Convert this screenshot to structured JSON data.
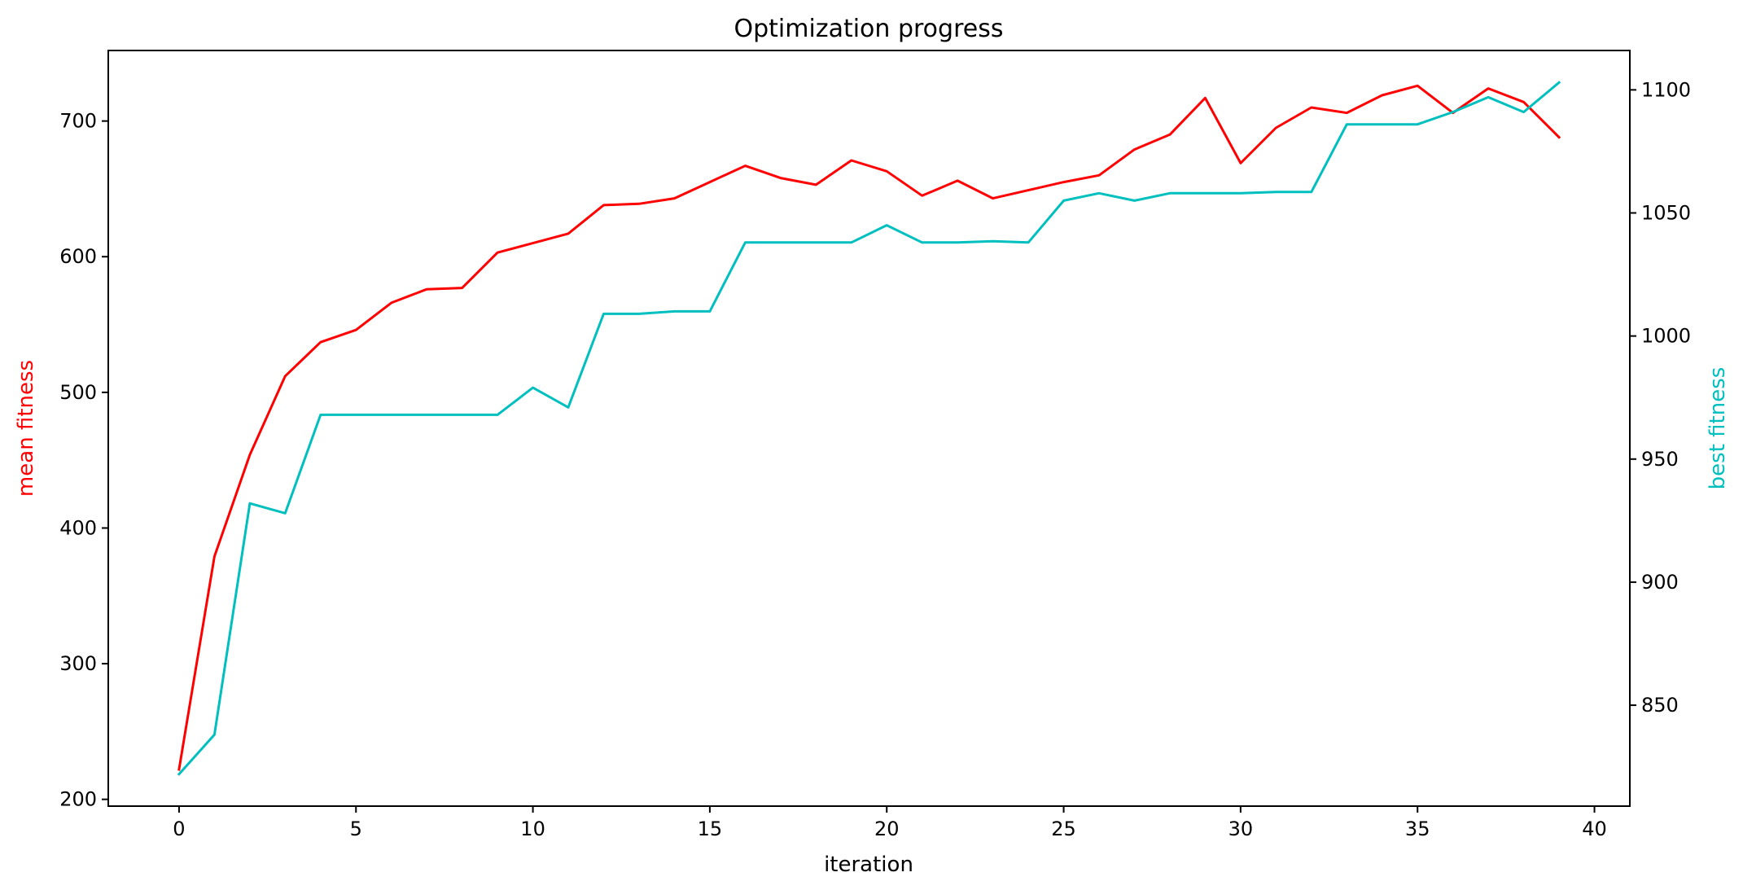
{
  "chart_data": {
    "type": "line",
    "title": "Optimization progress",
    "xlabel": "iteration",
    "xlim": [
      -2,
      41
    ],
    "x_ticks": [
      0,
      5,
      10,
      15,
      20,
      25,
      30,
      35,
      40
    ],
    "grid": false,
    "axes": {
      "left": {
        "label": "mean fitness",
        "color": "#ff0000",
        "ylim": [
          195,
          752
        ],
        "ticks": [
          200,
          300,
          400,
          500,
          600,
          700
        ]
      },
      "right": {
        "label": "best fitness",
        "color": "#00bfbf",
        "ylim": [
          809,
          1116
        ],
        "ticks": [
          850,
          900,
          950,
          1000,
          1050,
          1100
        ]
      }
    },
    "x": [
      0,
      1,
      2,
      3,
      4,
      5,
      6,
      7,
      8,
      9,
      10,
      11,
      12,
      13,
      14,
      15,
      16,
      17,
      18,
      19,
      20,
      21,
      22,
      23,
      24,
      25,
      26,
      27,
      28,
      29,
      30,
      31,
      32,
      33,
      34,
      35,
      36,
      37,
      38,
      39
    ],
    "series": [
      {
        "name": "mean fitness",
        "axis": "left",
        "color": "#ff0000",
        "values": [
          222,
          379,
          454,
          512,
          537,
          546,
          566,
          576,
          577,
          603,
          610,
          617,
          638,
          639,
          643,
          655,
          667,
          658,
          653,
          671,
          663,
          645,
          656,
          643,
          649,
          655,
          660,
          679,
          690,
          717,
          669,
          695,
          710,
          706,
          719,
          726,
          706,
          724,
          714,
          688
        ]
      },
      {
        "name": "best fitness",
        "axis": "right",
        "color": "#00bfbf",
        "values": [
          822,
          838,
          932,
          928,
          968,
          968,
          968,
          968,
          968,
          968,
          979,
          971,
          1009,
          1009,
          1010,
          1010,
          1038,
          1038,
          1038,
          1038,
          1045,
          1038,
          1038,
          1038.5,
          1038,
          1055,
          1058,
          1055,
          1058,
          1058,
          1058,
          1058.5,
          1058.5,
          1086,
          1086,
          1086,
          1091,
          1097,
          1091,
          1103
        ]
      }
    ]
  }
}
